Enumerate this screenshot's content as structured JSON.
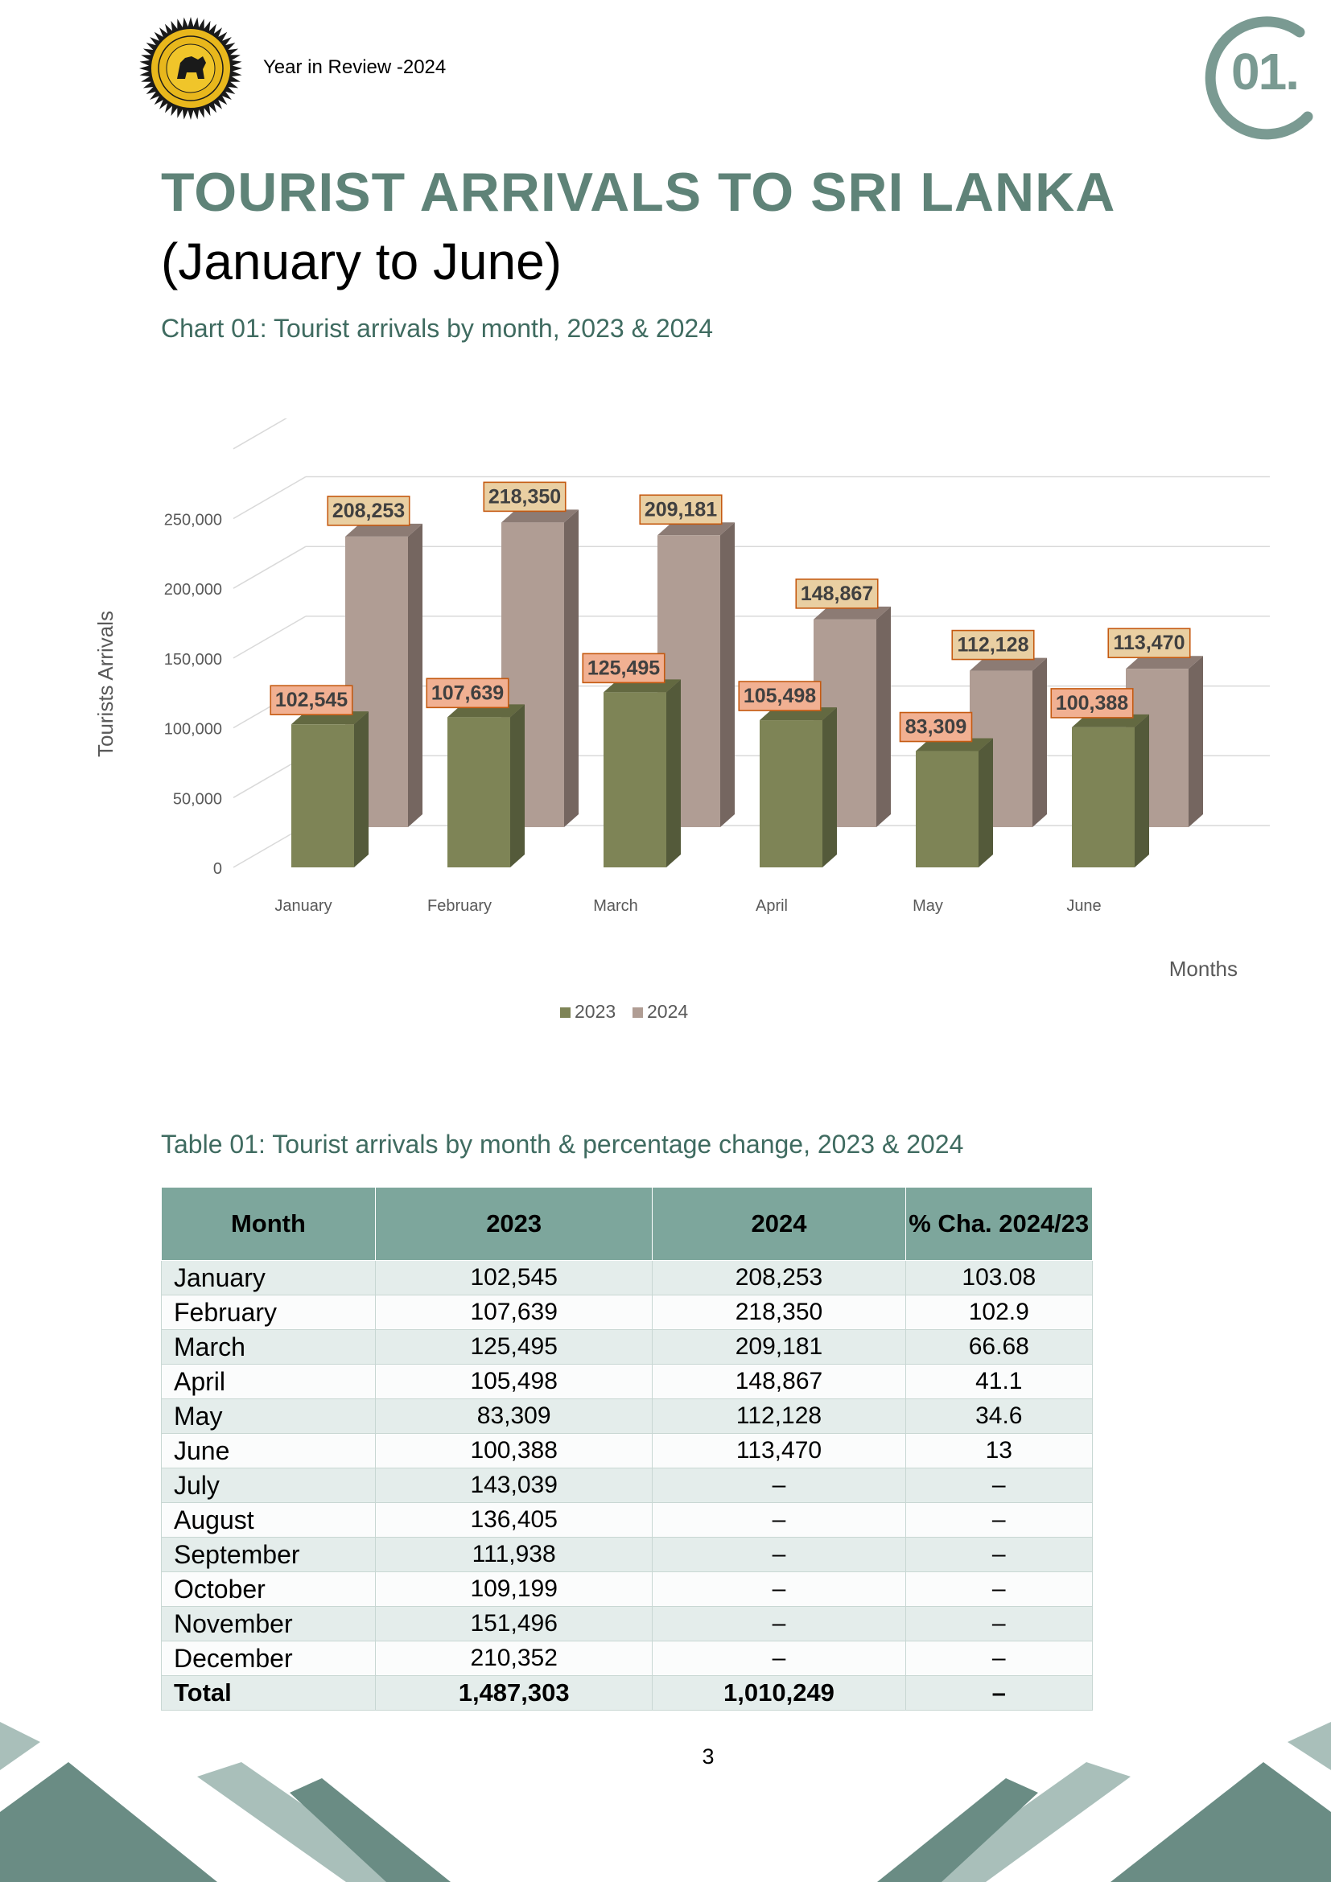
{
  "header": {
    "title": "Year in Review -2024",
    "logo_icon": "sltda-emblem",
    "section_number": "01."
  },
  "page": {
    "title": "TOURIST ARRIVALS TO SRI LANKA",
    "subtitle": "(January to June)",
    "chart_caption": "Chart 01: Tourist arrivals by month, 2023 & 2024",
    "table_caption": "Table 01: Tourist arrivals by month & percentage change, 2023 & 2024",
    "page_number": "3"
  },
  "colors": {
    "accent": "#5f8378",
    "series_2023": "#7e8456",
    "series_2024": "#b09d94",
    "label_2023_bg": "#f1b092",
    "label_2024_bg": "#e9cfa2"
  },
  "chart_data": {
    "type": "bar",
    "categories": [
      "January",
      "February",
      "March",
      "April",
      "May",
      "June"
    ],
    "series": [
      {
        "name": "2023",
        "values": [
          102545,
          107639,
          125495,
          105498,
          83309,
          100388
        ]
      },
      {
        "name": "2024",
        "values": [
          208253,
          218350,
          209181,
          148867,
          112128,
          113470
        ]
      }
    ],
    "data_labels": {
      "2023": [
        "102,545",
        "107,639",
        "125,495",
        "105,498",
        "83,309",
        "100,388"
      ],
      "2024": [
        "208,253",
        "218,350",
        "209,181",
        "148,867",
        "112,128",
        "113,470"
      ]
    },
    "ylabel": "Tourists Arrivals",
    "xlabel": "Months",
    "ylim": [
      0,
      300000
    ],
    "yticks": [
      0,
      50000,
      100000,
      150000,
      200000,
      250000
    ],
    "ytick_labels": [
      "0",
      "50,000",
      "100,000",
      "150,000",
      "200,000",
      "250,000"
    ],
    "grid": true,
    "legend": "bottom",
    "style": "3d"
  },
  "table": {
    "headers": [
      "Month",
      "2023",
      "2024",
      "% Cha. 2024/23"
    ],
    "rows": [
      [
        "January",
        "102,545",
        "208,253",
        "103.08"
      ],
      [
        "February",
        "107,639",
        "218,350",
        "102.9"
      ],
      [
        "March",
        "125,495",
        "209,181",
        "66.68"
      ],
      [
        "April",
        "105,498",
        "148,867",
        "41.1"
      ],
      [
        "May",
        "83,309",
        "112,128",
        "34.6"
      ],
      [
        "June",
        "100,388",
        "113,470",
        "13"
      ],
      [
        "July",
        "143,039",
        "–",
        "–"
      ],
      [
        "August",
        "136,405",
        "–",
        "–"
      ],
      [
        "September",
        "111,938",
        "–",
        "–"
      ],
      [
        "October",
        "109,199",
        "–",
        "–"
      ],
      [
        "November",
        "151,496",
        "–",
        "–"
      ],
      [
        "December",
        "210,352",
        "–",
        "–"
      ]
    ],
    "total": [
      "Total",
      "1,487,303",
      "1,010,249",
      "–"
    ]
  }
}
